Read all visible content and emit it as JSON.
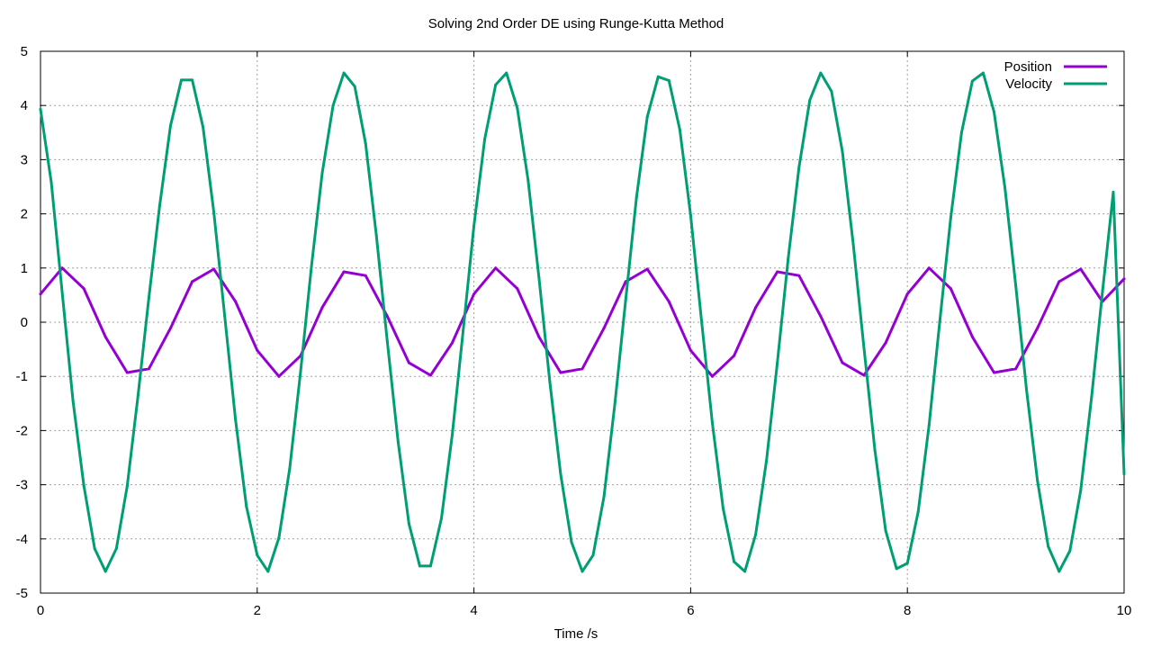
{
  "chart_data": {
    "type": "line",
    "title": "Solving 2nd Order DE using Runge-Kutta Method",
    "xlabel": "Time /s",
    "ylabel": "",
    "xlim": [
      0,
      10
    ],
    "ylim": [
      -5,
      5
    ],
    "xticks": [
      0,
      2,
      4,
      6,
      8,
      10
    ],
    "yticks": [
      -5,
      -4,
      -3,
      -2,
      -1,
      0,
      1,
      2,
      3,
      4,
      5
    ],
    "grid": true,
    "legend_position": "top-right",
    "series": [
      {
        "name": "Position",
        "color": "#9400d3",
        "x": [
          0,
          0.2,
          0.4,
          0.6,
          0.8,
          1.0,
          1.2,
          1.4,
          1.6,
          1.8,
          2.0,
          2.2,
          2.4,
          2.6,
          2.8,
          3.0,
          3.2,
          3.4,
          3.6,
          3.8,
          4.0,
          4.2,
          4.4,
          4.6,
          4.8,
          5.0,
          5.2,
          5.4,
          5.6,
          5.8,
          6.0,
          6.2,
          6.4,
          6.6,
          6.8,
          7.0,
          7.2,
          7.4,
          7.6,
          7.8,
          8.0,
          8.2,
          8.4,
          8.6,
          8.8,
          9.0,
          9.2,
          9.4,
          9.6,
          9.8,
          10.0
        ],
        "y": [
          0.52,
          1.0,
          0.62,
          -0.27,
          -0.93,
          -0.86,
          -0.11,
          0.75,
          0.98,
          0.38,
          -0.52,
          -1.0,
          -0.62,
          0.27,
          0.93,
          0.86,
          0.11,
          -0.75,
          -0.98,
          -0.38,
          0.52,
          1.0,
          0.62,
          -0.27,
          -0.93,
          -0.86,
          -0.11,
          0.75,
          0.98,
          0.38,
          -0.52,
          -1.0,
          -0.62,
          0.27,
          0.93,
          0.86,
          0.11,
          -0.75,
          -0.98,
          -0.38,
          0.52,
          1.0,
          0.62,
          -0.27,
          -0.93,
          -0.86,
          -0.11,
          0.75,
          0.98,
          0.38,
          0.8
        ]
      },
      {
        "name": "Velocity",
        "color": "#009e73",
        "x": [
          0,
          0.1,
          0.2,
          0.3,
          0.4,
          0.5,
          0.6,
          0.7,
          0.8,
          0.9,
          1.0,
          1.1,
          1.2,
          1.3,
          1.4,
          1.5,
          1.6,
          1.7,
          1.8,
          1.9,
          2.0,
          2.1,
          2.2,
          2.3,
          2.4,
          2.5,
          2.6,
          2.7,
          2.8,
          2.9,
          3.0,
          3.1,
          3.2,
          3.3,
          3.4,
          3.5,
          3.6,
          3.7,
          3.8,
          3.9,
          4.0,
          4.1,
          4.2,
          4.3,
          4.4,
          4.5,
          4.6,
          4.7,
          4.8,
          4.9,
          5.0,
          5.1,
          5.2,
          5.3,
          5.4,
          5.5,
          5.6,
          5.7,
          5.8,
          5.9,
          6.0,
          6.1,
          6.2,
          6.3,
          6.4,
          6.5,
          6.6,
          6.7,
          6.8,
          6.9,
          7.0,
          7.1,
          7.2,
          7.3,
          7.4,
          7.5,
          7.6,
          7.7,
          7.8,
          7.9,
          8.0,
          8.1,
          8.2,
          8.3,
          8.4,
          8.5,
          8.6,
          8.7,
          8.8,
          8.9,
          9.0,
          9.1,
          9.2,
          9.3,
          9.4,
          9.5,
          9.6,
          9.7,
          9.8,
          9.9,
          10.0
        ],
        "y": [
          3.93,
          2.58,
          0.55,
          -1.45,
          -3.02,
          -4.18,
          -4.6,
          -4.18,
          -3.03,
          -1.35,
          0.45,
          2.15,
          3.63,
          4.47,
          4.47,
          3.6,
          2.03,
          0.11,
          -1.8,
          -3.4,
          -4.3,
          -4.6,
          -3.98,
          -2.7,
          -0.91,
          1.02,
          2.75,
          4.0,
          4.6,
          4.35,
          3.3,
          1.6,
          -0.35,
          -2.2,
          -3.72,
          -4.5,
          -4.5,
          -3.62,
          -2.08,
          -0.16,
          1.78,
          3.38,
          4.38,
          4.6,
          3.95,
          2.62,
          0.83,
          -1.1,
          -2.8,
          -4.06,
          -4.6,
          -4.3,
          -3.22,
          -1.52,
          0.41,
          2.3,
          3.79,
          4.53,
          4.46,
          3.55,
          1.97,
          0.04,
          -1.86,
          -3.44,
          -4.42,
          -4.6,
          -3.92,
          -2.55,
          -0.75,
          1.18,
          2.86,
          4.1,
          4.6,
          4.26,
          3.15,
          1.45,
          -0.48,
          -2.36,
          -3.85,
          -4.55,
          -4.45,
          -3.5,
          -1.9,
          0.03,
          1.93,
          3.5,
          4.45,
          4.6,
          3.88,
          2.48,
          0.68,
          -1.25,
          -2.92,
          -4.14,
          -4.6,
          -4.22,
          -3.1,
          -1.38,
          0.55,
          2.4,
          -2.8
        ]
      }
    ]
  }
}
